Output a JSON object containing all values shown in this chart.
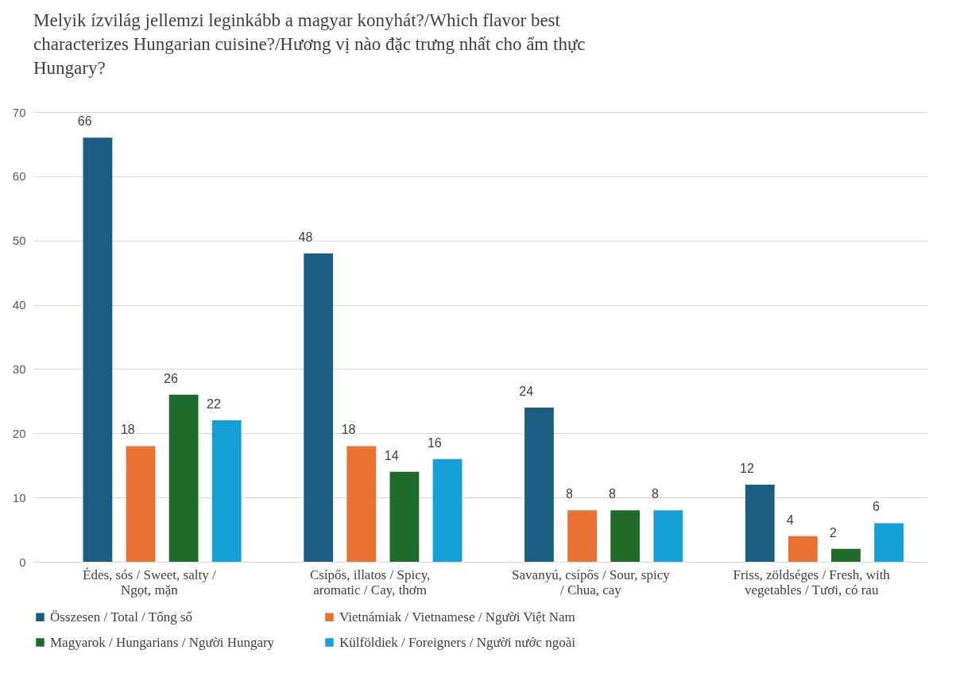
{
  "chart_data": {
    "type": "bar",
    "title": "Melyik ízvilág jellemzi leginkább a magyar konyhát?/Which flavor best characterizes Hungarian cuisine?/Hương vị nào đặc trưng nhất cho ẩm thực Hungary?",
    "categories": [
      "Édes, sós / Sweet, salty / Ngọt, mặn",
      "Csípős, illatos / Spicy, aromatic / Cay, thơm",
      "Savanyú, csípős / Sour, spicy / Chua, cay",
      "Friss, zöldséges / Fresh, with vegetables / Tươi, có rau"
    ],
    "series": [
      {
        "name": "Összesen / Total / Tổng số",
        "color": "#1b5e82",
        "values": [
          66,
          48,
          24,
          12
        ]
      },
      {
        "name": "Vietnámiak / Vietnamese / Người Việt Nam",
        "color": "#e97132",
        "values": [
          18,
          18,
          8,
          4
        ]
      },
      {
        "name": "Magyarok / Hungarians / Người Hungary",
        "color": "#1e6b2b",
        "values": [
          26,
          14,
          8,
          2
        ]
      },
      {
        "name": "Külföldiek / Foreigners / Người nước ngoài",
        "color": "#14a0d6",
        "values": [
          22,
          16,
          8,
          6
        ]
      }
    ],
    "ylim": [
      0,
      70
    ],
    "yticks": [
      0,
      10,
      20,
      30,
      40,
      50,
      60,
      70
    ],
    "grid": "y",
    "legend": "bottom",
    "data_labels": true
  }
}
